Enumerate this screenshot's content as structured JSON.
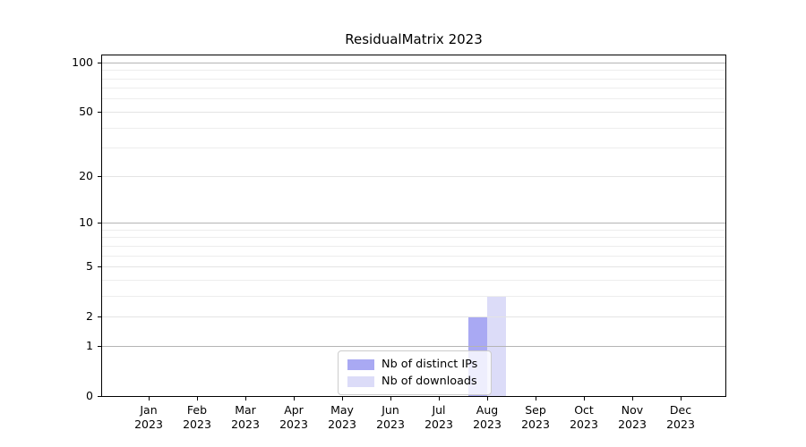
{
  "title": "ResidualMatrix 2023",
  "chart_data": {
    "type": "bar",
    "title": "ResidualMatrix 2023",
    "xlabel": "",
    "ylabel": "",
    "x_tick_labels": [
      {
        "month": "Jan",
        "year": "2023"
      },
      {
        "month": "Feb",
        "year": "2023"
      },
      {
        "month": "Mar",
        "year": "2023"
      },
      {
        "month": "Apr",
        "year": "2023"
      },
      {
        "month": "May",
        "year": "2023"
      },
      {
        "month": "Jun",
        "year": "2023"
      },
      {
        "month": "Jul",
        "year": "2023"
      },
      {
        "month": "Aug",
        "year": "2023"
      },
      {
        "month": "Sep",
        "year": "2023"
      },
      {
        "month": "Oct",
        "year": "2023"
      },
      {
        "month": "Nov",
        "year": "2023"
      },
      {
        "month": "Dec",
        "year": "2023"
      }
    ],
    "series": [
      {
        "name": "Nb of distinct IPs",
        "color": "#a9a9f3",
        "values": [
          0,
          0,
          0,
          0,
          0,
          0,
          0,
          2,
          0,
          0,
          0,
          0
        ]
      },
      {
        "name": "Nb of downloads",
        "color": "#dcdcf8",
        "values": [
          0,
          0,
          0,
          0,
          0,
          0,
          0,
          3,
          0,
          0,
          0,
          0
        ]
      }
    ],
    "yscale": "log1p",
    "ylim": [
      0,
      110
    ],
    "y_tick_values": [
      0,
      1,
      2,
      5,
      10,
      20,
      50,
      100
    ],
    "gridlines": {
      "major_values": [
        1,
        10,
        100
      ],
      "labeled_values": [
        2,
        5,
        20,
        50
      ],
      "minor_values": [
        3,
        4,
        6,
        7,
        8,
        9,
        30,
        40,
        60,
        70,
        80,
        90
      ]
    },
    "grid_colors": {
      "major": "#b4b4b4",
      "labeled": "#e4e4e4",
      "minor": "#ededed"
    },
    "legend": {
      "position": "lower center",
      "border_color": "#cccccc"
    }
  }
}
